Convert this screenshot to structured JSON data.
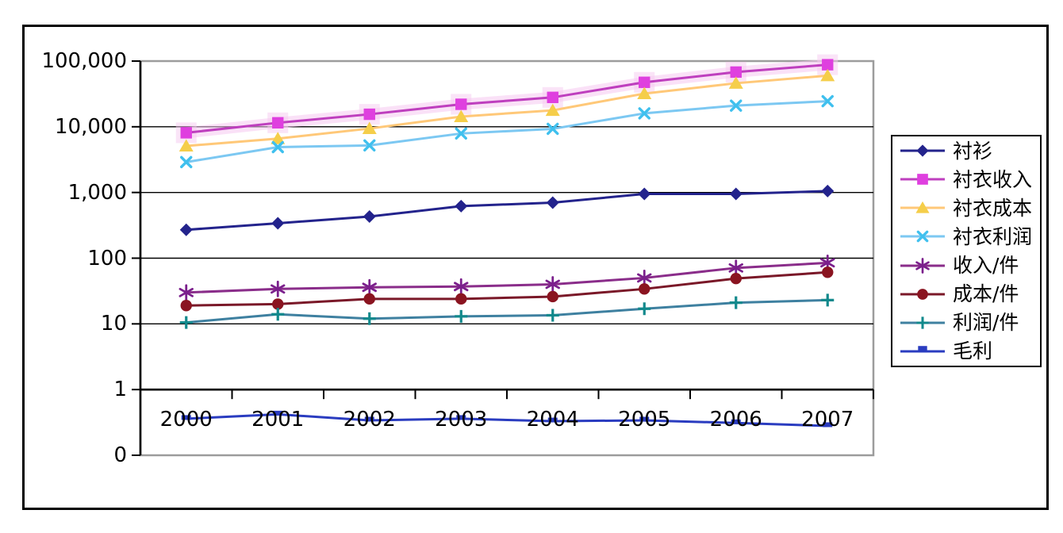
{
  "chart_data": {
    "type": "line",
    "title": "",
    "xlabel": "",
    "ylabel": "",
    "x_categories": [
      "2000",
      "2001",
      "2002",
      "2003",
      "2004",
      "2005",
      "2006",
      "2007"
    ],
    "y_axis": {
      "scale": "log",
      "tick_labels": [
        "100,000",
        "10,000",
        "1,000",
        "100",
        "10",
        "1",
        "0"
      ],
      "tick_values": [
        100000,
        10000,
        1000,
        100,
        10,
        1,
        0.1
      ],
      "range_top": 100000,
      "range_bottom": 0.1
    },
    "grid": "horizontal-decade-lines",
    "legend_position": "right",
    "series": [
      {
        "key": "shirts",
        "name": "衬衫",
        "marker": "diamond",
        "line_color": "#23238C",
        "marker_color": "#23238C",
        "values": [
          270,
          340,
          430,
          620,
          700,
          950,
          950,
          1050
        ]
      },
      {
        "key": "shirt-revenue",
        "name": "衬衣收入",
        "marker": "square",
        "line_color": "#BE3FBE",
        "marker_color": "#DF3FDF",
        "values": [
          8100,
          11500,
          15500,
          22000,
          28000,
          47500,
          68000,
          88000
        ],
        "glow": true
      },
      {
        "key": "shirt-cost",
        "name": "衬衣成本",
        "marker": "triangle",
        "line_color": "#FFC878",
        "marker_color": "#F5CE4A",
        "values": [
          5100,
          6600,
          9400,
          14300,
          17800,
          32000,
          46000,
          60000
        ]
      },
      {
        "key": "shirt-profit",
        "name": "衬衣利润",
        "marker": "x",
        "line_color": "#7CC8F2",
        "marker_color": "#3FC0EE",
        "values": [
          2900,
          4900,
          5200,
          7900,
          9300,
          16000,
          21000,
          24500
        ]
      },
      {
        "key": "revenue-per-unit",
        "name": "收入/件",
        "marker": "asterisk",
        "line_color": "#8A2D8A",
        "marker_color": "#7B1F8C",
        "values": [
          30,
          34,
          36,
          37,
          40,
          50,
          71,
          85
        ]
      },
      {
        "key": "cost-per-unit",
        "name": "成本/件",
        "marker": "circle",
        "line_color": "#7A1828",
        "marker_color": "#8A1420",
        "values": [
          19,
          20,
          24,
          24,
          26,
          34,
          49,
          61
        ]
      },
      {
        "key": "profit-per-unit",
        "name": "利润/件",
        "marker": "plus",
        "line_color": "#3E80A0",
        "marker_color": "#12898C",
        "values": [
          10.5,
          14,
          12,
          13,
          13.5,
          17,
          21,
          23
        ]
      },
      {
        "key": "gross-margin",
        "name": "毛利",
        "marker": "dash",
        "line_color": "#2A3CC0",
        "marker_color": "#2A3CC0",
        "values": [
          0.36,
          0.42,
          0.34,
          0.36,
          0.33,
          0.34,
          0.31,
          0.28
        ]
      }
    ],
    "style": {
      "background": "#FFFFFF",
      "plot_border_color": "#9C9C9C",
      "gridline_color": "#000000",
      "axis_color": "#000000",
      "frame_border_color": "#000000",
      "glow_color": "#F5C9F0"
    }
  }
}
